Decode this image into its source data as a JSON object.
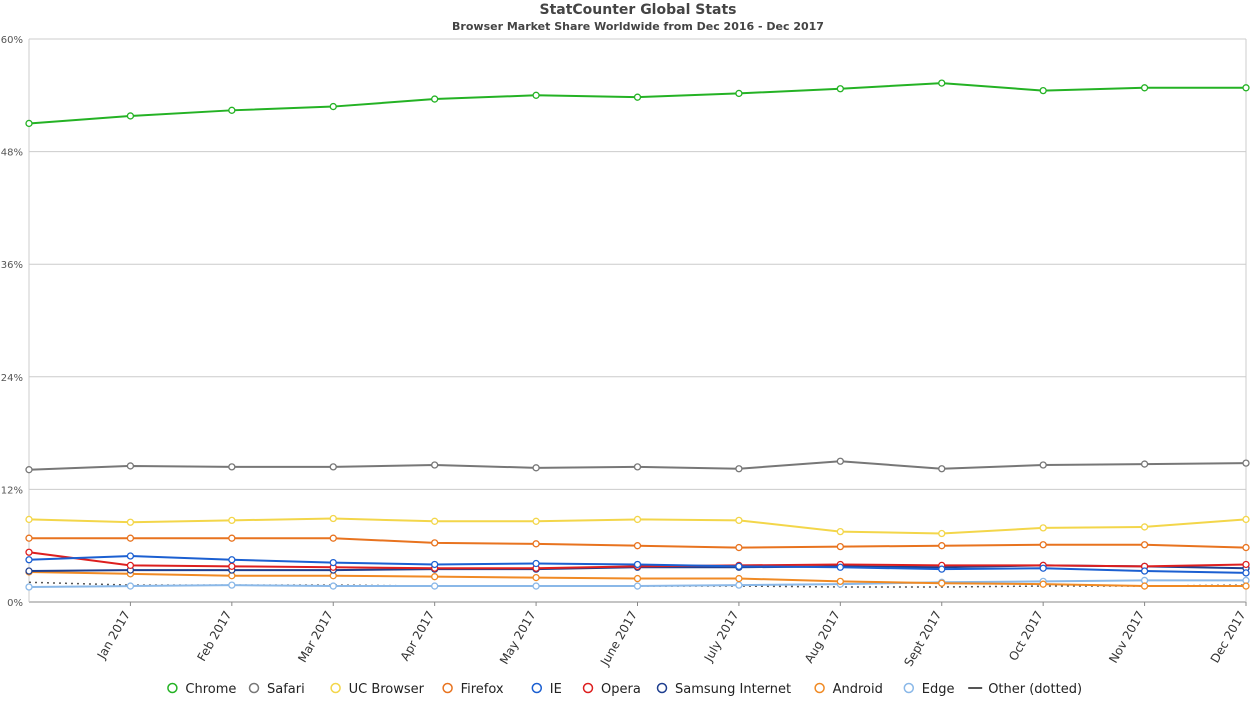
{
  "chart_data": {
    "type": "line",
    "title": "StatCounter Global Stats",
    "subtitle": "Browser Market Share Worldwide from Dec 2016 - Dec 2017",
    "categories": [
      "Dec 2016",
      "Jan 2017",
      "Feb 2017",
      "Mar 2017",
      "Apr 2017",
      "May 2017",
      "June 2017",
      "July 2017",
      "Aug 2017",
      "Sept 2017",
      "Oct 2017",
      "Nov 2017",
      "Dec 2017"
    ],
    "x_tick_labels": [
      "Jan 2017",
      "Feb 2017",
      "Mar 2017",
      "Apr 2017",
      "May 2017",
      "June 2017",
      "July 2017",
      "Aug 2017",
      "Sept 2017",
      "Oct 2017",
      "Nov 2017",
      "Dec 2017"
    ],
    "y_ticks": [
      "0%",
      "12%",
      "24%",
      "36%",
      "48%",
      "60%"
    ],
    "ylim": [
      0,
      60
    ],
    "grid": true,
    "legend_position": "bottom",
    "series": [
      {
        "name": "Chrome",
        "color": "#24b224",
        "values": [
          51.0,
          51.8,
          52.4,
          52.8,
          53.6,
          54.0,
          53.8,
          54.2,
          54.7,
          55.3,
          54.5,
          54.8,
          54.8
        ]
      },
      {
        "name": "Safari",
        "color": "#777777",
        "values": [
          14.1,
          14.5,
          14.4,
          14.4,
          14.6,
          14.3,
          14.4,
          14.2,
          15.0,
          14.2,
          14.6,
          14.7,
          14.8
        ]
      },
      {
        "name": "UC Browser",
        "color": "#f3d64a",
        "values": [
          8.8,
          8.5,
          8.7,
          8.9,
          8.6,
          8.6,
          8.8,
          8.7,
          7.5,
          7.3,
          7.9,
          8.0,
          8.8
        ]
      },
      {
        "name": "Firefox",
        "color": "#e8731f",
        "values": [
          6.8,
          6.8,
          6.8,
          6.8,
          6.3,
          6.2,
          6.0,
          5.8,
          5.9,
          6.0,
          6.1,
          6.1,
          5.8
        ]
      },
      {
        "name": "IE",
        "color": "#1b5fd1",
        "values": [
          4.5,
          4.9,
          4.5,
          4.2,
          4.0,
          4.1,
          4.0,
          3.8,
          3.7,
          3.5,
          3.6,
          3.3,
          3.1
        ]
      },
      {
        "name": "Opera",
        "color": "#dd1f1f",
        "values": [
          5.3,
          3.9,
          3.8,
          3.7,
          3.6,
          3.6,
          3.8,
          3.9,
          4.0,
          3.9,
          3.9,
          3.8,
          4.0
        ]
      },
      {
        "name": "Samsung Internet",
        "color": "#1f3f8f",
        "values": [
          3.3,
          3.4,
          3.4,
          3.4,
          3.5,
          3.5,
          3.7,
          3.7,
          3.8,
          3.7,
          3.9,
          3.8,
          3.6
        ]
      },
      {
        "name": "Android",
        "color": "#f08a24",
        "values": [
          3.2,
          3.0,
          2.8,
          2.8,
          2.7,
          2.6,
          2.5,
          2.5,
          2.2,
          2.0,
          1.9,
          1.7,
          1.7
        ]
      },
      {
        "name": "Edge",
        "color": "#8ab8e8",
        "values": [
          1.6,
          1.7,
          1.8,
          1.7,
          1.7,
          1.7,
          1.7,
          1.8,
          1.9,
          2.1,
          2.2,
          2.3,
          2.3
        ]
      },
      {
        "name": "Other (dotted)",
        "color": "#555555",
        "dotted": true,
        "values": [
          2.1,
          1.8,
          1.8,
          1.8,
          1.7,
          1.7,
          1.7,
          1.7,
          1.6,
          1.6,
          1.7,
          1.7,
          1.8
        ]
      }
    ]
  }
}
